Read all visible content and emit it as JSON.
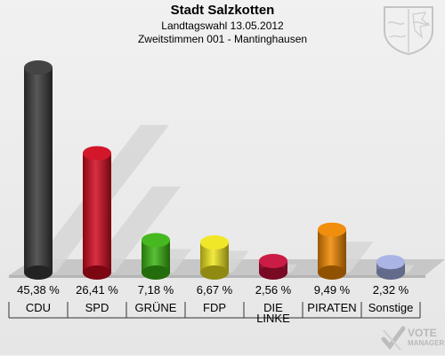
{
  "title": "Stadt Salzkotten",
  "subtitle1": "Landtagswahl 13.05.2012",
  "subtitle2": "Zweitstimmen 001 - Mantinghausen",
  "watermark": {
    "line1": "VOTE",
    "line2": "MANAGER"
  },
  "chart_data": {
    "type": "bar",
    "title": "Stadt Salzkotten",
    "categories": [
      "CDU",
      "SPD",
      "GRÜNE",
      "FDP",
      "DIE LINKE",
      "PIRATEN",
      "Sonstige"
    ],
    "category_lines": [
      [
        "CDU"
      ],
      [
        "SPD"
      ],
      [
        "GRÜNE"
      ],
      [
        "FDP"
      ],
      [
        "DIE",
        "LINKE"
      ],
      [
        "PIRATEN"
      ],
      [
        "Sonstige"
      ]
    ],
    "values": [
      45.38,
      26.41,
      7.18,
      6.67,
      2.56,
      9.49,
      2.32
    ],
    "value_labels": [
      "45,38 %",
      "26,41 %",
      "7,18 %",
      "6,67 %",
      "2,56 %",
      "9,49 %",
      "2,32 %"
    ],
    "colors": [
      "#3a3a3a",
      "#d10a1f",
      "#3cb514",
      "#f0e61e",
      "#c8103c",
      "#f08800",
      "#a6b0e4"
    ],
    "grid": false,
    "legend": "none"
  }
}
